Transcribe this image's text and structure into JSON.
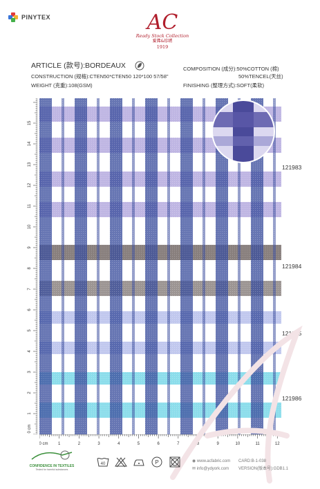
{
  "header": {
    "brand": "PINYTEX",
    "logo_main": "AC",
    "logo_tagline": "Ready Stock Collection",
    "logo_chinese": "爱弗&珍绣",
    "logo_year": "1919"
  },
  "specs": {
    "article": "ARTICLE (款号):BORDEAUX",
    "construction": "CONSTRUCTION (规格):CTEN50*CTEN50 120*100 57/58\"",
    "weight": "WEIGHT (克重):108(GSM)",
    "composition_1": "COMPOSITION (成分):50%COTTON (棉)",
    "composition_2": "50%TENCEL(天丝)",
    "finishing": "FINISHING (整理方式):SOFT(柔软)"
  },
  "codes": [
    "121983",
    "121984",
    "121985",
    "121986"
  ],
  "ruler": {
    "unit": "cm",
    "bottom_labels": [
      "0 cm",
      "1",
      "2",
      "3",
      "4",
      "5",
      "6",
      "7",
      "8",
      "9",
      "10",
      "11",
      "12"
    ],
    "left_labels": [
      "0 cm",
      "1",
      "2",
      "3",
      "4",
      "5",
      "6",
      "7",
      "8",
      "9",
      "10",
      "11",
      "12",
      "13",
      "14",
      "15"
    ]
  },
  "footer": {
    "cert_title": "CONFIDENCE IN TEXTILES",
    "cert_sub": "Tested for harmful substances",
    "care_wash": "40",
    "care_p": "P",
    "website": "www.acfabric.com",
    "email": "info@ydyork.com",
    "card": "CARD:B-1-038",
    "version": "VERSION(版本号):GDB1.1"
  },
  "colors": {
    "navy": "#3c4f9e",
    "lavender": "#a99ed9",
    "taupe": "#7b716f",
    "periwinkle": "#8e9be0",
    "aqua": "#6fd4e6",
    "brand_red": "#b01e2c"
  }
}
